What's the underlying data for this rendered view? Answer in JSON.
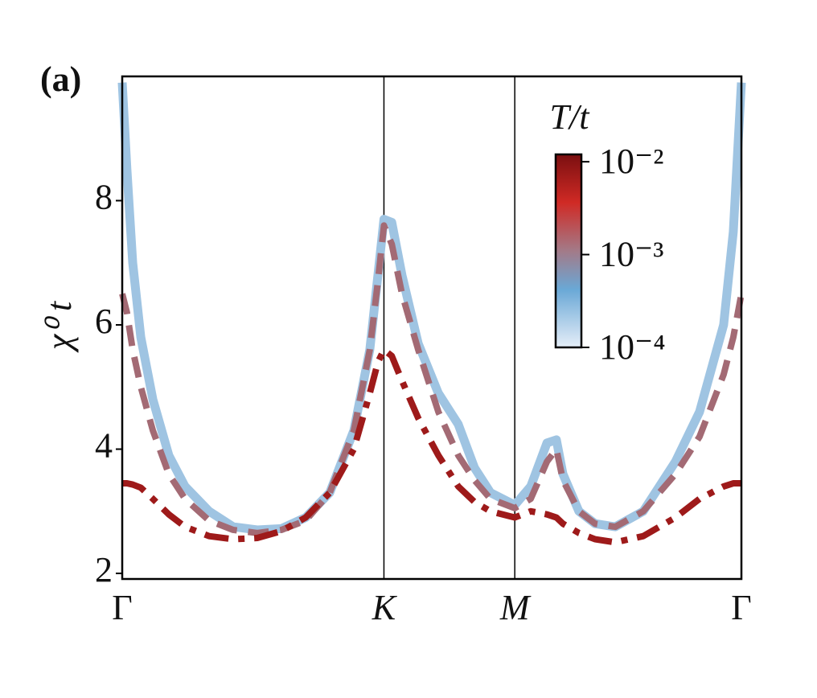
{
  "chart_data": {
    "type": "line",
    "panel_label": "(a)",
    "ylabel": "χ⁰ t",
    "x": [
      0,
      0.018,
      0.04,
      0.071,
      0.117,
      0.178,
      0.24,
      0.332,
      0.424,
      0.516,
      0.608,
      0.701,
      0.793,
      0.885,
      0.946,
      0.977,
      1.0,
      1.03,
      1.069,
      1.131,
      1.208,
      1.284,
      1.346,
      1.407,
      1.5,
      1.561,
      1.623,
      1.659,
      1.684,
      1.745,
      1.807,
      1.884,
      1.991,
      2.114,
      2.206,
      2.298,
      2.335,
      2.366
    ],
    "series": [
      {
        "color": "#9fc4e2",
        "style": "solid",
        "values": [
          9.9,
          8.5,
          7.0,
          5.8,
          4.8,
          3.9,
          3.4,
          3.0,
          2.75,
          2.7,
          2.72,
          2.9,
          3.3,
          4.3,
          5.6,
          6.8,
          7.7,
          7.65,
          6.8,
          5.7,
          4.9,
          4.4,
          3.7,
          3.3,
          3.1,
          3.4,
          4.1,
          4.15,
          3.6,
          3.0,
          2.8,
          2.75,
          3.0,
          3.8,
          4.6,
          6.0,
          7.5,
          9.9
        ]
      },
      {
        "color": "#a36a74",
        "style": "dashed",
        "values": [
          6.5,
          6.2,
          5.6,
          5.0,
          4.3,
          3.6,
          3.2,
          2.85,
          2.7,
          2.65,
          2.7,
          2.85,
          3.3,
          4.3,
          5.6,
          6.7,
          7.6,
          7.3,
          6.5,
          5.6,
          4.6,
          3.9,
          3.5,
          3.2,
          3.05,
          3.2,
          3.8,
          4.0,
          3.5,
          3.0,
          2.8,
          2.75,
          3.0,
          3.6,
          4.2,
          5.2,
          5.8,
          6.5
        ]
      },
      {
        "color": "#9e1a1a",
        "style": "dashdot",
        "values": [
          3.45,
          3.45,
          3.43,
          3.38,
          3.2,
          2.95,
          2.75,
          2.6,
          2.55,
          2.57,
          2.68,
          2.9,
          3.3,
          4.0,
          4.9,
          5.4,
          5.6,
          5.5,
          5.1,
          4.5,
          3.9,
          3.4,
          3.15,
          3.0,
          2.9,
          3.0,
          2.95,
          2.9,
          2.8,
          2.65,
          2.55,
          2.5,
          2.6,
          2.9,
          3.2,
          3.4,
          3.45,
          3.45
        ]
      }
    ],
    "xlim": [
      0,
      2.366
    ],
    "xticks": [
      {
        "value": 0,
        "label": "Γ"
      },
      {
        "value": 1.0,
        "label": "K"
      },
      {
        "value": 1.5,
        "label": "M"
      },
      {
        "value": 2.366,
        "label": "Γ"
      }
    ],
    "ylim": [
      1.91,
      10.0
    ],
    "yticks": [
      2,
      4,
      6,
      8
    ],
    "vertical_lines_at_xticks": true,
    "colorbar": {
      "title": "T/t",
      "scale": "log",
      "lim": [
        0.0001,
        0.012
      ],
      "ticks": [
        {
          "value": 0.01,
          "label": "10⁻²"
        },
        {
          "value": 0.001,
          "label": "10⁻³"
        },
        {
          "value": 0.0001,
          "label": "10⁻⁴"
        }
      ]
    }
  }
}
